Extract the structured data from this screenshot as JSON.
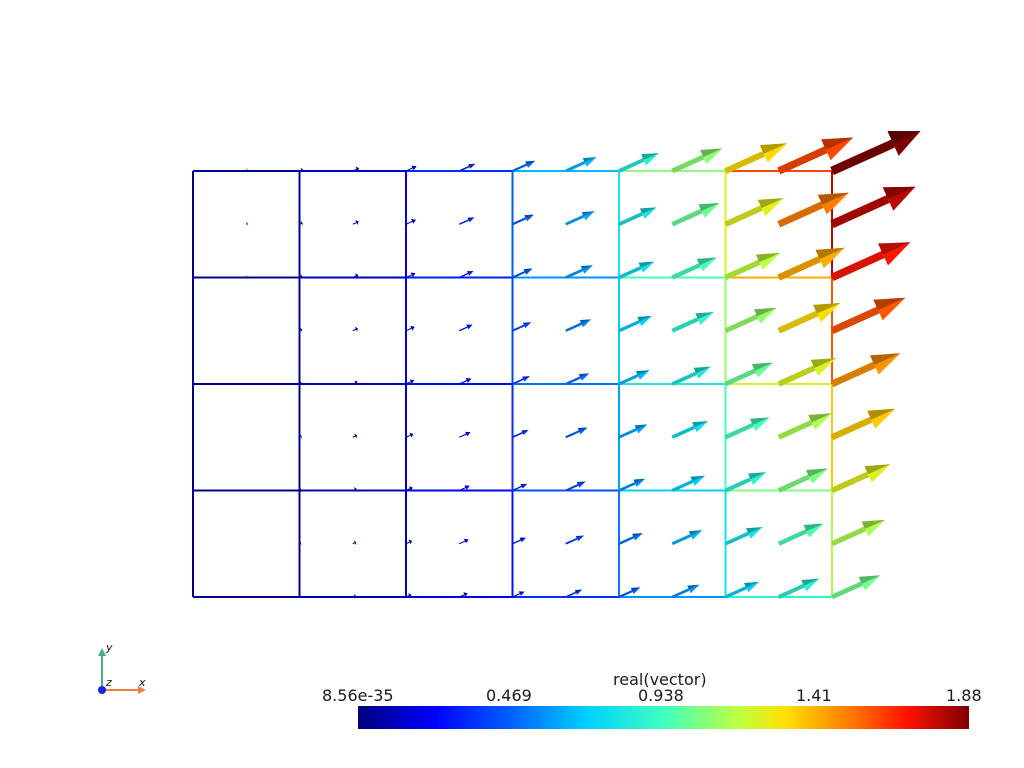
{
  "scalar_bar": {
    "title": "real(vector)",
    "tick_labels": [
      "8.56e-35",
      "0.469",
      "0.938",
      "1.41",
      "1.88"
    ],
    "range": [
      8.56e-35,
      1.88
    ],
    "colormap": [
      "#00007f",
      "#0000ff",
      "#0080ff",
      "#00ffff",
      "#80ff80",
      "#ffff00",
      "#ff8000",
      "#ff0000",
      "#7f0000"
    ]
  },
  "orientation_axes": {
    "x_label": "x",
    "y_label": "y",
    "z_label": "z",
    "x_color": "#f08040",
    "y_color": "#40b080",
    "z_color": "#2020e0"
  },
  "mesh": {
    "columns": 6,
    "rows": 4,
    "field_max": 1.88,
    "vector_direction": [
      1,
      0.45
    ]
  }
}
